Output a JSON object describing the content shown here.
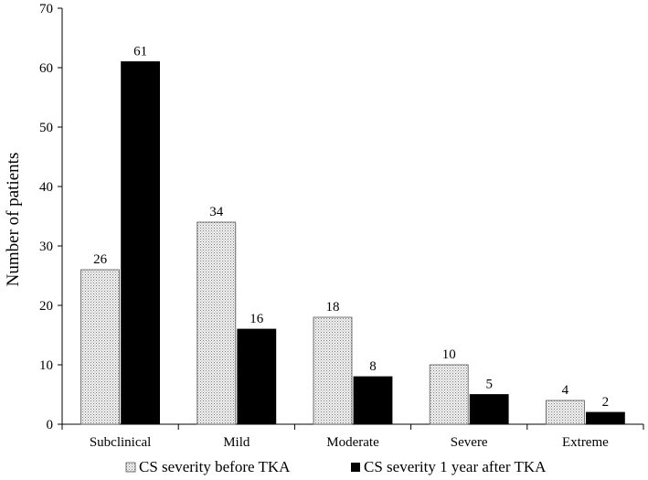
{
  "chart_data": {
    "type": "bar",
    "title": "",
    "xlabel": "",
    "ylabel": "Number of patients",
    "ylim": [
      0,
      70
    ],
    "yticks": [
      0,
      10,
      20,
      30,
      40,
      50,
      60,
      70
    ],
    "grid": false,
    "legend_position": "bottom",
    "categories": [
      "Subclinical",
      "Mild",
      "Moderate",
      "Severe",
      "Extreme"
    ],
    "series": [
      {
        "name": "CS severity before TKA",
        "values": [
          26,
          34,
          18,
          10,
          4
        ],
        "color": "#e6e6e6",
        "fill": "dotted"
      },
      {
        "name": "CS severity 1 year after TKA",
        "values": [
          61,
          16,
          8,
          5,
          2
        ],
        "color": "#000000",
        "fill": "solid"
      }
    ]
  }
}
